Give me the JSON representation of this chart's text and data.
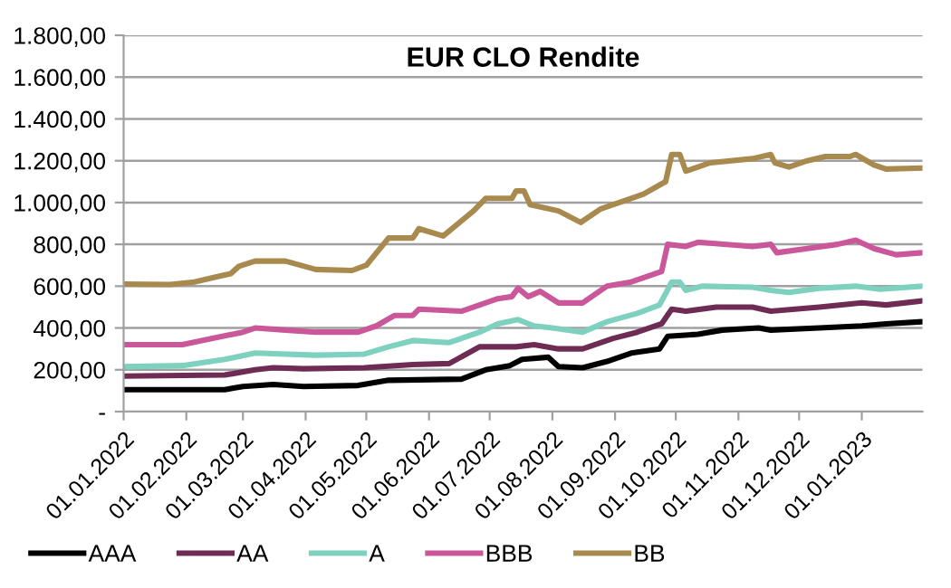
{
  "chart_data": {
    "type": "line",
    "title": "EUR CLO Rendite",
    "xlim": [
      "2022-01-01",
      "2023-01-31"
    ],
    "xticks": [
      {
        "value": "2022-01-01",
        "label": "01.01.2022"
      },
      {
        "value": "2022-02-01",
        "label": "01.02.2022"
      },
      {
        "value": "2022-03-01",
        "label": "01.03.2022"
      },
      {
        "value": "2022-04-01",
        "label": "01.04.2022"
      },
      {
        "value": "2022-05-01",
        "label": "01.05.2022"
      },
      {
        "value": "2022-06-01",
        "label": "01.06.2022"
      },
      {
        "value": "2022-07-01",
        "label": "01.07.2022"
      },
      {
        "value": "2022-08-01",
        "label": "01.08.2022"
      },
      {
        "value": "2022-09-01",
        "label": "01.09.2022"
      },
      {
        "value": "2022-10-01",
        "label": "01.10.2022"
      },
      {
        "value": "2022-11-01",
        "label": "01.11.2022"
      },
      {
        "value": "2022-12-01",
        "label": "01.12.2022"
      },
      {
        "value": "2023-01-01",
        "label": "01.01.2023"
      }
    ],
    "ylim": [
      0,
      1800
    ],
    "yticks": [
      {
        "value": 0,
        "label": "-"
      },
      {
        "value": 200,
        "label": "200,00"
      },
      {
        "value": 400,
        "label": "400,00"
      },
      {
        "value": 600,
        "label": "600,00"
      },
      {
        "value": 800,
        "label": "800,00"
      },
      {
        "value": 1000,
        "label": "1.000,00"
      },
      {
        "value": 1200,
        "label": "1.200,00"
      },
      {
        "value": 1400,
        "label": "1.400,00"
      },
      {
        "value": 1600,
        "label": "1.600,00"
      },
      {
        "value": 1800,
        "label": "1.800,00"
      }
    ],
    "grid": "y",
    "legend": "bottom",
    "marker": "none",
    "line_style": "solid",
    "series": [
      {
        "name": "AAA",
        "color": "#000000",
        "x": [
          "2022-01-01",
          "2022-02-20",
          "2022-03-01",
          "2022-03-16",
          "2022-03-31",
          "2022-04-27",
          "2022-05-12",
          "2022-06-17",
          "2022-06-29",
          "2022-07-11",
          "2022-07-17",
          "2022-07-30",
          "2022-08-04",
          "2022-08-16",
          "2022-08-28",
          "2022-09-09",
          "2022-09-23",
          "2022-09-27",
          "2022-10-12",
          "2022-10-24",
          "2022-11-11",
          "2022-11-17",
          "2022-12-11",
          "2023-01-01",
          "2023-01-13",
          "2023-01-31"
        ],
        "values": [
          105,
          105,
          120,
          130,
          120,
          125,
          150,
          155,
          200,
          220,
          250,
          260,
          215,
          210,
          240,
          280,
          300,
          360,
          370,
          390,
          400,
          390,
          400,
          410,
          420,
          430
        ]
      },
      {
        "name": "AA",
        "color": "#6e2c55",
        "x": [
          "2022-01-01",
          "2022-02-20",
          "2022-03-07",
          "2022-03-16",
          "2022-03-31",
          "2022-04-30",
          "2022-05-24",
          "2022-06-11",
          "2022-06-26",
          "2022-07-14",
          "2022-07-23",
          "2022-08-04",
          "2022-08-16",
          "2022-08-31",
          "2022-09-12",
          "2022-09-24",
          "2022-09-29",
          "2022-10-06",
          "2022-10-21",
          "2022-11-08",
          "2022-11-17",
          "2022-12-11",
          "2023-01-01",
          "2023-01-13",
          "2023-01-31"
        ],
        "values": [
          170,
          175,
          200,
          210,
          205,
          210,
          225,
          230,
          310,
          310,
          320,
          300,
          300,
          350,
          380,
          420,
          490,
          480,
          500,
          500,
          480,
          500,
          520,
          510,
          530
        ]
      },
      {
        "name": "A",
        "color": "#7fd1bf",
        "x": [
          "2022-01-01",
          "2022-01-30",
          "2022-02-20",
          "2022-03-07",
          "2022-04-06",
          "2022-04-30",
          "2022-05-12",
          "2022-05-24",
          "2022-06-11",
          "2022-06-26",
          "2022-07-05",
          "2022-07-15",
          "2022-07-23",
          "2022-08-01",
          "2022-08-16",
          "2022-08-28",
          "2022-09-12",
          "2022-09-23",
          "2022-09-29",
          "2022-10-03",
          "2022-10-06",
          "2022-10-14",
          "2022-11-08",
          "2022-11-17",
          "2022-11-26",
          "2022-12-11",
          "2022-12-29",
          "2023-01-10",
          "2023-01-31"
        ],
        "values": [
          215,
          220,
          250,
          280,
          270,
          275,
          310,
          340,
          330,
          380,
          420,
          440,
          410,
          400,
          380,
          430,
          470,
          510,
          620,
          620,
          580,
          600,
          595,
          580,
          570,
          590,
          600,
          585,
          600
        ]
      },
      {
        "name": "BBB",
        "color": "#c9579a",
        "x": [
          "2022-01-01",
          "2022-01-30",
          "2022-02-14",
          "2022-03-01",
          "2022-03-07",
          "2022-03-22",
          "2022-04-06",
          "2022-04-27",
          "2022-05-06",
          "2022-05-15",
          "2022-05-24",
          "2022-05-27",
          "2022-06-17",
          "2022-07-05",
          "2022-07-12",
          "2022-07-15",
          "2022-07-20",
          "2022-07-26",
          "2022-08-04",
          "2022-08-16",
          "2022-08-28",
          "2022-09-09",
          "2022-09-24",
          "2022-09-27",
          "2022-10-06",
          "2022-10-12",
          "2022-11-08",
          "2022-11-17",
          "2022-11-20",
          "2022-12-05",
          "2022-12-20",
          "2022-12-29",
          "2023-01-07",
          "2023-01-18",
          "2023-01-31"
        ],
        "values": [
          320,
          320,
          350,
          380,
          400,
          390,
          380,
          380,
          410,
          460,
          460,
          490,
          480,
          540,
          550,
          590,
          550,
          575,
          520,
          520,
          600,
          620,
          670,
          800,
          790,
          810,
          790,
          800,
          760,
          780,
          800,
          820,
          780,
          750,
          760
        ]
      },
      {
        "name": "BB",
        "color": "#a88a4e",
        "x": [
          "2022-01-01",
          "2022-01-24",
          "2022-02-05",
          "2022-02-14",
          "2022-02-23",
          "2022-02-27",
          "2022-03-07",
          "2022-03-22",
          "2022-04-06",
          "2022-04-24",
          "2022-05-01",
          "2022-05-12",
          "2022-05-24",
          "2022-05-27",
          "2022-06-08",
          "2022-06-23",
          "2022-06-29",
          "2022-07-12",
          "2022-07-14",
          "2022-07-18",
          "2022-07-21",
          "2022-08-04",
          "2022-08-15",
          "2022-08-25",
          "2022-09-06",
          "2022-09-15",
          "2022-09-26",
          "2022-09-29",
          "2022-10-03",
          "2022-10-06",
          "2022-10-12",
          "2022-10-18",
          "2022-11-08",
          "2022-11-17",
          "2022-11-19",
          "2022-11-26",
          "2022-12-05",
          "2022-12-14",
          "2022-12-26",
          "2022-12-29",
          "2023-01-07",
          "2023-01-13",
          "2023-01-31"
        ],
        "values": [
          610,
          608,
          620,
          640,
          660,
          695,
          720,
          720,
          680,
          675,
          700,
          830,
          830,
          875,
          840,
          960,
          1020,
          1020,
          1055,
          1055,
          990,
          960,
          905,
          970,
          1010,
          1040,
          1100,
          1230,
          1230,
          1150,
          1170,
          1190,
          1210,
          1230,
          1190,
          1170,
          1200,
          1220,
          1220,
          1230,
          1180,
          1160,
          1165
        ]
      }
    ]
  }
}
